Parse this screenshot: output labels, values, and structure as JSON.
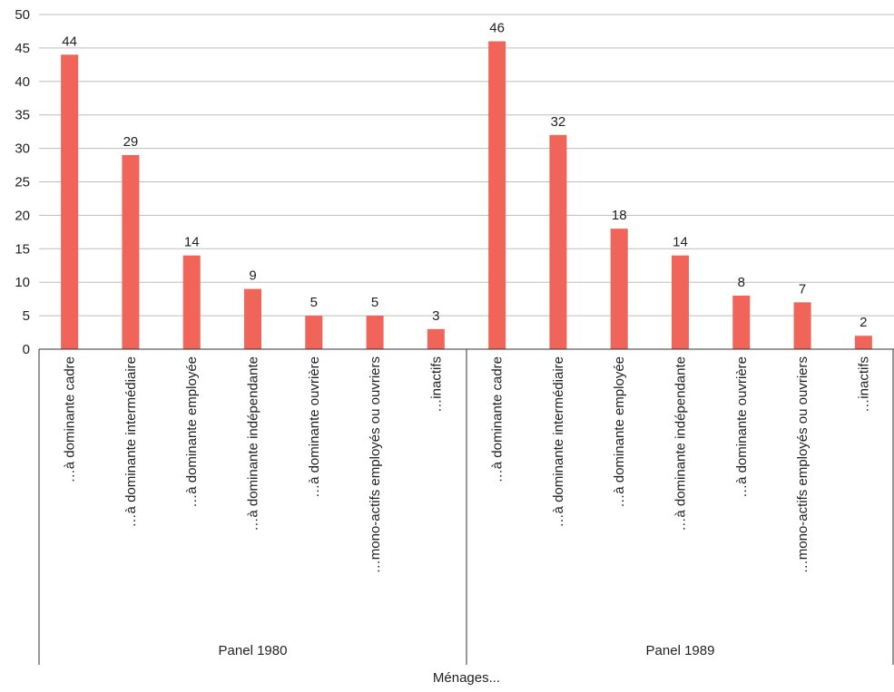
{
  "chart_data": {
    "type": "bar",
    "xlabel": "Ménages...",
    "ylim": [
      0,
      50
    ],
    "yticks": [
      0,
      5,
      10,
      15,
      20,
      25,
      30,
      35,
      40,
      45,
      50
    ],
    "grid": true,
    "bar_color": "#f0645a",
    "groups": [
      {
        "label": "Panel 1980",
        "categories": [
          "…à dominante cadre",
          "…à dominante intermédiaire",
          "…à dominante employée",
          "…à dominante indépendante",
          "…à dominante ouvrière",
          "…mono-actifs employés ou ouvriers",
          "…inactifs"
        ],
        "values": [
          44,
          29,
          14,
          9,
          5,
          5,
          3
        ]
      },
      {
        "label": "Panel 1989",
        "categories": [
          "…à dominante cadre",
          "…à dominante intermédiaire",
          "…à dominante employée",
          "…à dominante indépendante",
          "…à dominante ouvrière",
          "…mono-actifs employés ou ouvriers",
          "…inactifs"
        ],
        "values": [
          46,
          32,
          18,
          14,
          8,
          7,
          2
        ]
      }
    ]
  }
}
